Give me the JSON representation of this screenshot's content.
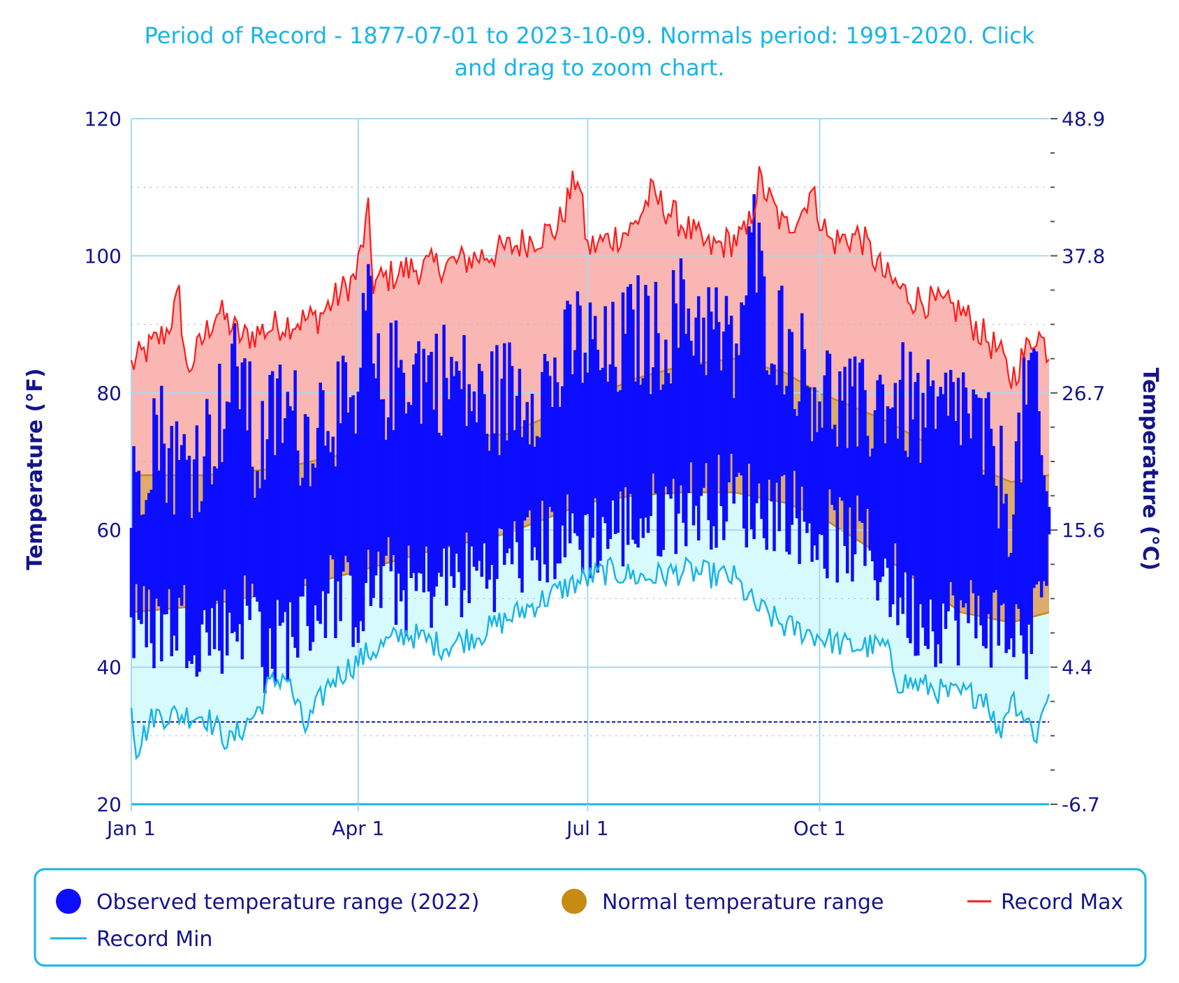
{
  "chart_data": {
    "type": "area",
    "title_line1": "Period of Record - 1877-07-01 to 2023-10-09. Normals period: 1991-2020. Click",
    "title_line2": "and drag to zoom chart.",
    "ylabel_left": "Temperature (°F)",
    "ylabel_right": "Temperature (°C)",
    "ylim": [
      20,
      120
    ],
    "yticks_left": [
      {
        "v": 20,
        "label": "20"
      },
      {
        "v": 40,
        "label": "40"
      },
      {
        "v": 60,
        "label": "60"
      },
      {
        "v": 80,
        "label": "80"
      },
      {
        "v": 100,
        "label": "100"
      },
      {
        "v": 120,
        "label": "120"
      }
    ],
    "yticks_right": [
      {
        "v": 20,
        "label": "-6.7"
      },
      {
        "v": 40,
        "label": "4.4"
      },
      {
        "v": 60,
        "label": "15.6"
      },
      {
        "v": 80,
        "label": "26.7"
      },
      {
        "v": 100,
        "label": "37.8"
      },
      {
        "v": 120,
        "label": "48.9"
      }
    ],
    "xlim": [
      1,
      365
    ],
    "xticks": [
      {
        "day": 1,
        "label": "Jan 1"
      },
      {
        "day": 91,
        "label": "Apr 1"
      },
      {
        "day": 182,
        "label": "Jul 1"
      },
      {
        "day": 274,
        "label": "Oct 1"
      }
    ],
    "freezing_line_f": 32,
    "record_max_anchors": [
      [
        1,
        84
      ],
      [
        15,
        89
      ],
      [
        20,
        94
      ],
      [
        23,
        83
      ],
      [
        35,
        92
      ],
      [
        45,
        88
      ],
      [
        60,
        90
      ],
      [
        75,
        91
      ],
      [
        90,
        97
      ],
      [
        95,
        106
      ],
      [
        97,
        96
      ],
      [
        110,
        98
      ],
      [
        130,
        99
      ],
      [
        150,
        101
      ],
      [
        170,
        104
      ],
      [
        178,
        112
      ],
      [
        182,
        101
      ],
      [
        200,
        104
      ],
      [
        207,
        109
      ],
      [
        230,
        101
      ],
      [
        245,
        103
      ],
      [
        250,
        111
      ],
      [
        260,
        104
      ],
      [
        268,
        107
      ],
      [
        270,
        110
      ],
      [
        278,
        102
      ],
      [
        290,
        103
      ],
      [
        300,
        97
      ],
      [
        310,
        94
      ],
      [
        330,
        92
      ],
      [
        345,
        86
      ],
      [
        350,
        82
      ],
      [
        360,
        89
      ],
      [
        365,
        86
      ]
    ],
    "record_min_anchors": [
      [
        1,
        35
      ],
      [
        3,
        28
      ],
      [
        10,
        33
      ],
      [
        30,
        33
      ],
      [
        40,
        29
      ],
      [
        52,
        34
      ],
      [
        55,
        37
      ],
      [
        62,
        39
      ],
      [
        70,
        31
      ],
      [
        80,
        38
      ],
      [
        95,
        42
      ],
      [
        110,
        45
      ],
      [
        125,
        43
      ],
      [
        140,
        45
      ],
      [
        150,
        47
      ],
      [
        160,
        49
      ],
      [
        175,
        52
      ],
      [
        190,
        54
      ],
      [
        205,
        53
      ],
      [
        220,
        54
      ],
      [
        240,
        53
      ],
      [
        248,
        49
      ],
      [
        260,
        46
      ],
      [
        270,
        45
      ],
      [
        285,
        43
      ],
      [
        300,
        43
      ],
      [
        305,
        38
      ],
      [
        318,
        37
      ],
      [
        325,
        36
      ],
      [
        340,
        36
      ],
      [
        345,
        30
      ],
      [
        350,
        36
      ],
      [
        360,
        30
      ],
      [
        365,
        37
      ]
    ],
    "normal_high_anchors": [
      [
        1,
        68
      ],
      [
        30,
        68
      ],
      [
        60,
        69
      ],
      [
        91,
        71.5
      ],
      [
        120,
        73
      ],
      [
        150,
        74
      ],
      [
        182,
        79
      ],
      [
        200,
        82
      ],
      [
        220,
        84
      ],
      [
        240,
        85
      ],
      [
        260,
        83
      ],
      [
        274,
        80
      ],
      [
        300,
        76
      ],
      [
        330,
        70
      ],
      [
        350,
        67
      ],
      [
        365,
        68
      ]
    ],
    "normal_low_anchors": [
      [
        1,
        48
      ],
      [
        30,
        49
      ],
      [
        60,
        51
      ],
      [
        91,
        54
      ],
      [
        120,
        57
      ],
      [
        150,
        59.5
      ],
      [
        182,
        64
      ],
      [
        200,
        65
      ],
      [
        220,
        65.5
      ],
      [
        240,
        65.5
      ],
      [
        260,
        64
      ],
      [
        274,
        62
      ],
      [
        300,
        56
      ],
      [
        330,
        48
      ],
      [
        350,
        46.5
      ],
      [
        365,
        48
      ]
    ],
    "observed_2022": {
      "series": [
        {
          "name": "daily_high_anchors",
          "values": [
            [
              1,
              64
            ],
            [
              10,
              76
            ],
            [
              20,
              69
            ],
            [
              30,
              72
            ],
            [
              40,
              80
            ],
            [
              45,
              85
            ],
            [
              50,
              70
            ],
            [
              60,
              78
            ],
            [
              70,
              74
            ],
            [
              80,
              79
            ],
            [
              90,
              74
            ],
            [
              95,
              95
            ],
            [
              98,
              80
            ],
            [
              110,
              84
            ],
            [
              120,
              83
            ],
            [
              130,
              82
            ],
            [
              140,
              78
            ],
            [
              150,
              80
            ],
            [
              160,
              81
            ],
            [
              170,
              82
            ],
            [
              178,
              88
            ],
            [
              190,
              84
            ],
            [
              200,
              89
            ],
            [
              210,
              88
            ],
            [
              220,
              92
            ],
            [
              230,
              90
            ],
            [
              240,
              85
            ],
            [
              245,
              95
            ],
            [
              248,
              103
            ],
            [
              252,
              92
            ],
            [
              260,
              88
            ],
            [
              270,
              82
            ],
            [
              280,
              79
            ],
            [
              290,
              76
            ],
            [
              300,
              80
            ],
            [
              310,
              78
            ],
            [
              320,
              75
            ],
            [
              330,
              79
            ],
            [
              340,
              72
            ],
            [
              350,
              64
            ],
            [
              358,
              84
            ],
            [
              365,
              60
            ]
          ]
        },
        {
          "name": "daily_low_anchors",
          "values": [
            [
              1,
              46
            ],
            [
              10,
              46
            ],
            [
              20,
              47
            ],
            [
              30,
              45
            ],
            [
              40,
              46
            ],
            [
              50,
              49
            ],
            [
              55,
              41
            ],
            [
              60,
              44
            ],
            [
              70,
              47
            ],
            [
              80,
              51
            ],
            [
              90,
              49
            ],
            [
              100,
              53
            ],
            [
              110,
              51
            ],
            [
              120,
              52
            ],
            [
              130,
              53
            ],
            [
              140,
              54
            ],
            [
              150,
              56
            ],
            [
              160,
              57
            ],
            [
              170,
              59
            ],
            [
              180,
              59
            ],
            [
              190,
              60
            ],
            [
              200,
              61
            ],
            [
              210,
              62
            ],
            [
              220,
              64
            ],
            [
              230,
              64
            ],
            [
              240,
              65
            ],
            [
              250,
              63
            ],
            [
              260,
              64
            ],
            [
              270,
              60
            ],
            [
              280,
              59
            ],
            [
              290,
              58
            ],
            [
              300,
              54
            ],
            [
              310,
              48
            ],
            [
              320,
              47
            ],
            [
              330,
              47
            ],
            [
              340,
              47
            ],
            [
              350,
              45
            ],
            [
              358,
              44
            ],
            [
              365,
              57
            ]
          ]
        }
      ]
    },
    "legend": [
      {
        "label": "Observed temperature range (2022)",
        "color": "#0d0dff",
        "marker": "circle"
      },
      {
        "label": "Normal temperature range",
        "color": "#c78a12",
        "marker": "circle"
      },
      {
        "label": "Record Max",
        "color": "#ff1a1a",
        "marker": "line"
      },
      {
        "label": "Record Min",
        "color": "#19b4e6",
        "marker": "line"
      }
    ]
  },
  "colors": {
    "record_max_fill": "#f9b6b2",
    "record_min_fill": "#d7fafc",
    "normal_fill": "#ddab6b",
    "normal_stroke": "#c78a12",
    "observed": "#0d0dff",
    "record_max_line": "#ff1a1a",
    "record_min_line": "#19b4e6",
    "axis_text": "#14148c",
    "grid": "#a9d8f0",
    "freezing_line": "#1a1ab4"
  }
}
